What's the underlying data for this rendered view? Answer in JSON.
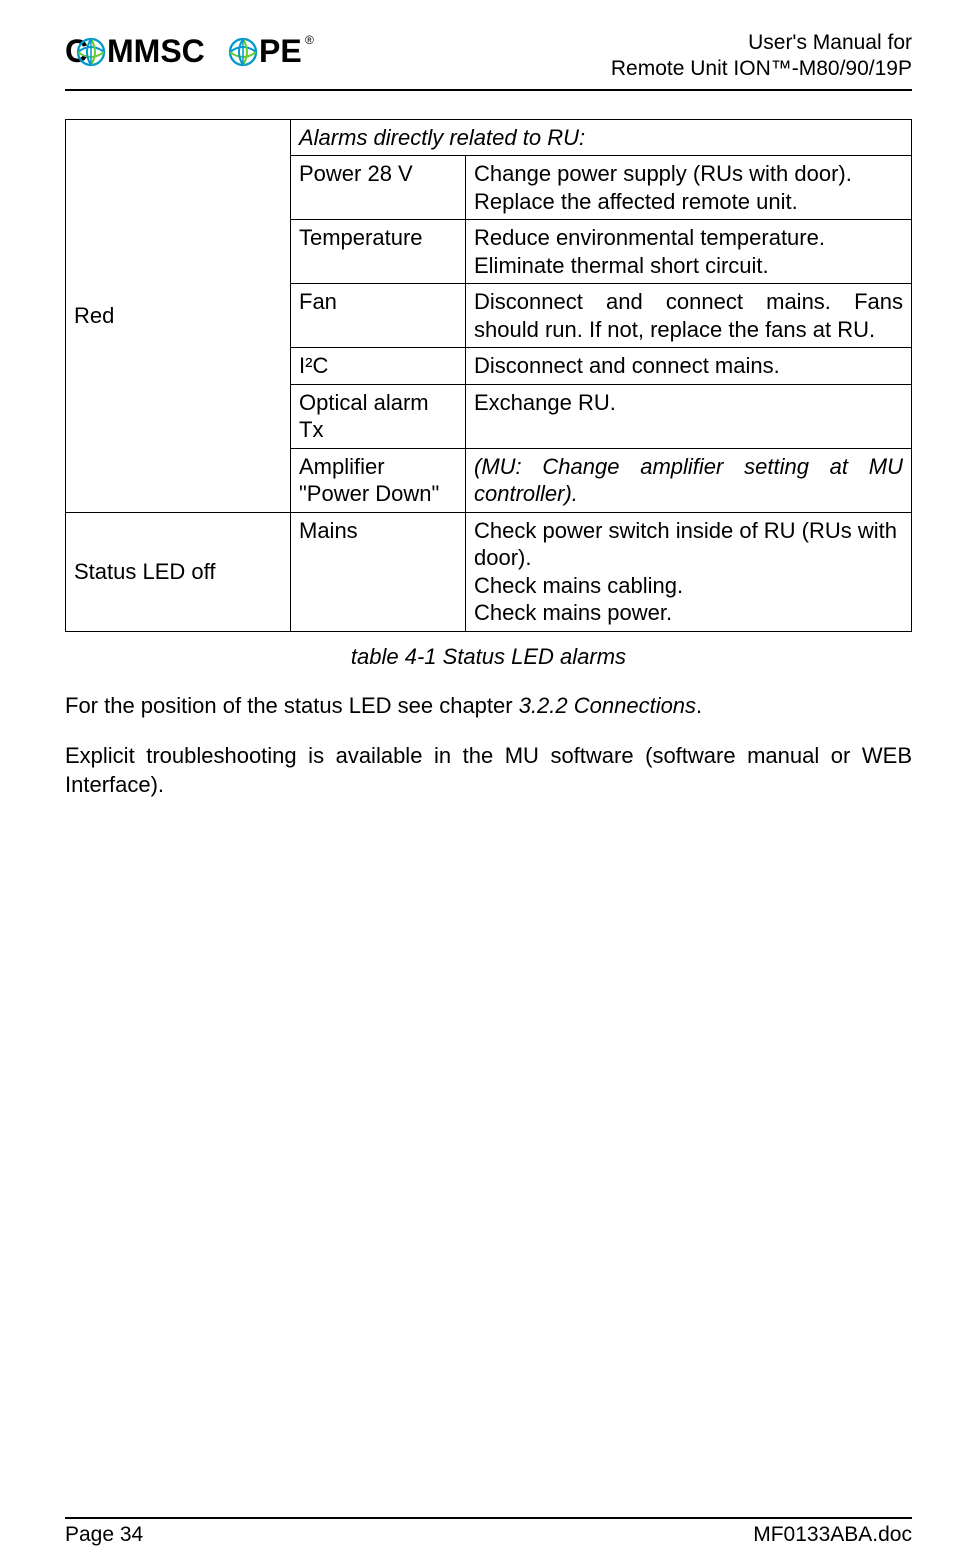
{
  "header": {
    "logo_text1": "C",
    "logo_text2": "MMSC",
    "logo_text3": "PE",
    "logo_reg": "®",
    "title_line1": "User's Manual for",
    "title_line2": "Remote Unit ION™-M80/90/19P"
  },
  "table": {
    "rows": [
      {
        "c1": "Red",
        "c2": null,
        "c3": "Alarms directly related to RU:",
        "c3_colspan": 2,
        "c3_class": "italic",
        "rowspan1": 7
      },
      {
        "c2": "Power 28 V",
        "c3": "Change power supply (RUs with door). Replace the affected remote unit."
      },
      {
        "c2": "Temperature",
        "c3": "Reduce environmental temperature. Eliminate thermal short circuit."
      },
      {
        "c2": "Fan",
        "c3": "Disconnect and connect mains. Fans should run. If not, replace the fans at RU.",
        "c3_class": "justify"
      },
      {
        "c2": "I²C",
        "c3": "Disconnect and connect mains."
      },
      {
        "c2": "Optical alarm Tx",
        "c3": "Exchange RU."
      },
      {
        "c2": "Amplifier \"Power Down\"",
        "c2_class": "justify",
        "c3": "(MU: Change amplifier setting at MU controller).",
        "c3_class": "italic justify"
      },
      {
        "c1": "Status LED off",
        "c2": "Mains",
        "c3": "Check power switch inside of RU (RUs with door).\nCheck mains cabling.\nCheck mains power."
      }
    ]
  },
  "caption": "table 4-1 Status LED alarms",
  "paragraphs": {
    "p1_pre": "For the position of the status LED see chapter ",
    "p1_em": "3.2.2 Connections",
    "p1_post": ".",
    "p2": "Explicit troubleshooting is available in the MU software (software manual or WEB Interface)."
  },
  "footer": {
    "page": "Page 34",
    "doc": "MF0133ABA.doc"
  },
  "style": {
    "logo_font_weight": "900",
    "logo_font_size": 30,
    "globe_color1": "#0099cc",
    "globe_color2": "#66cc33",
    "header_font_size": 21,
    "body_font_size": 22,
    "border_color": "#000000"
  }
}
